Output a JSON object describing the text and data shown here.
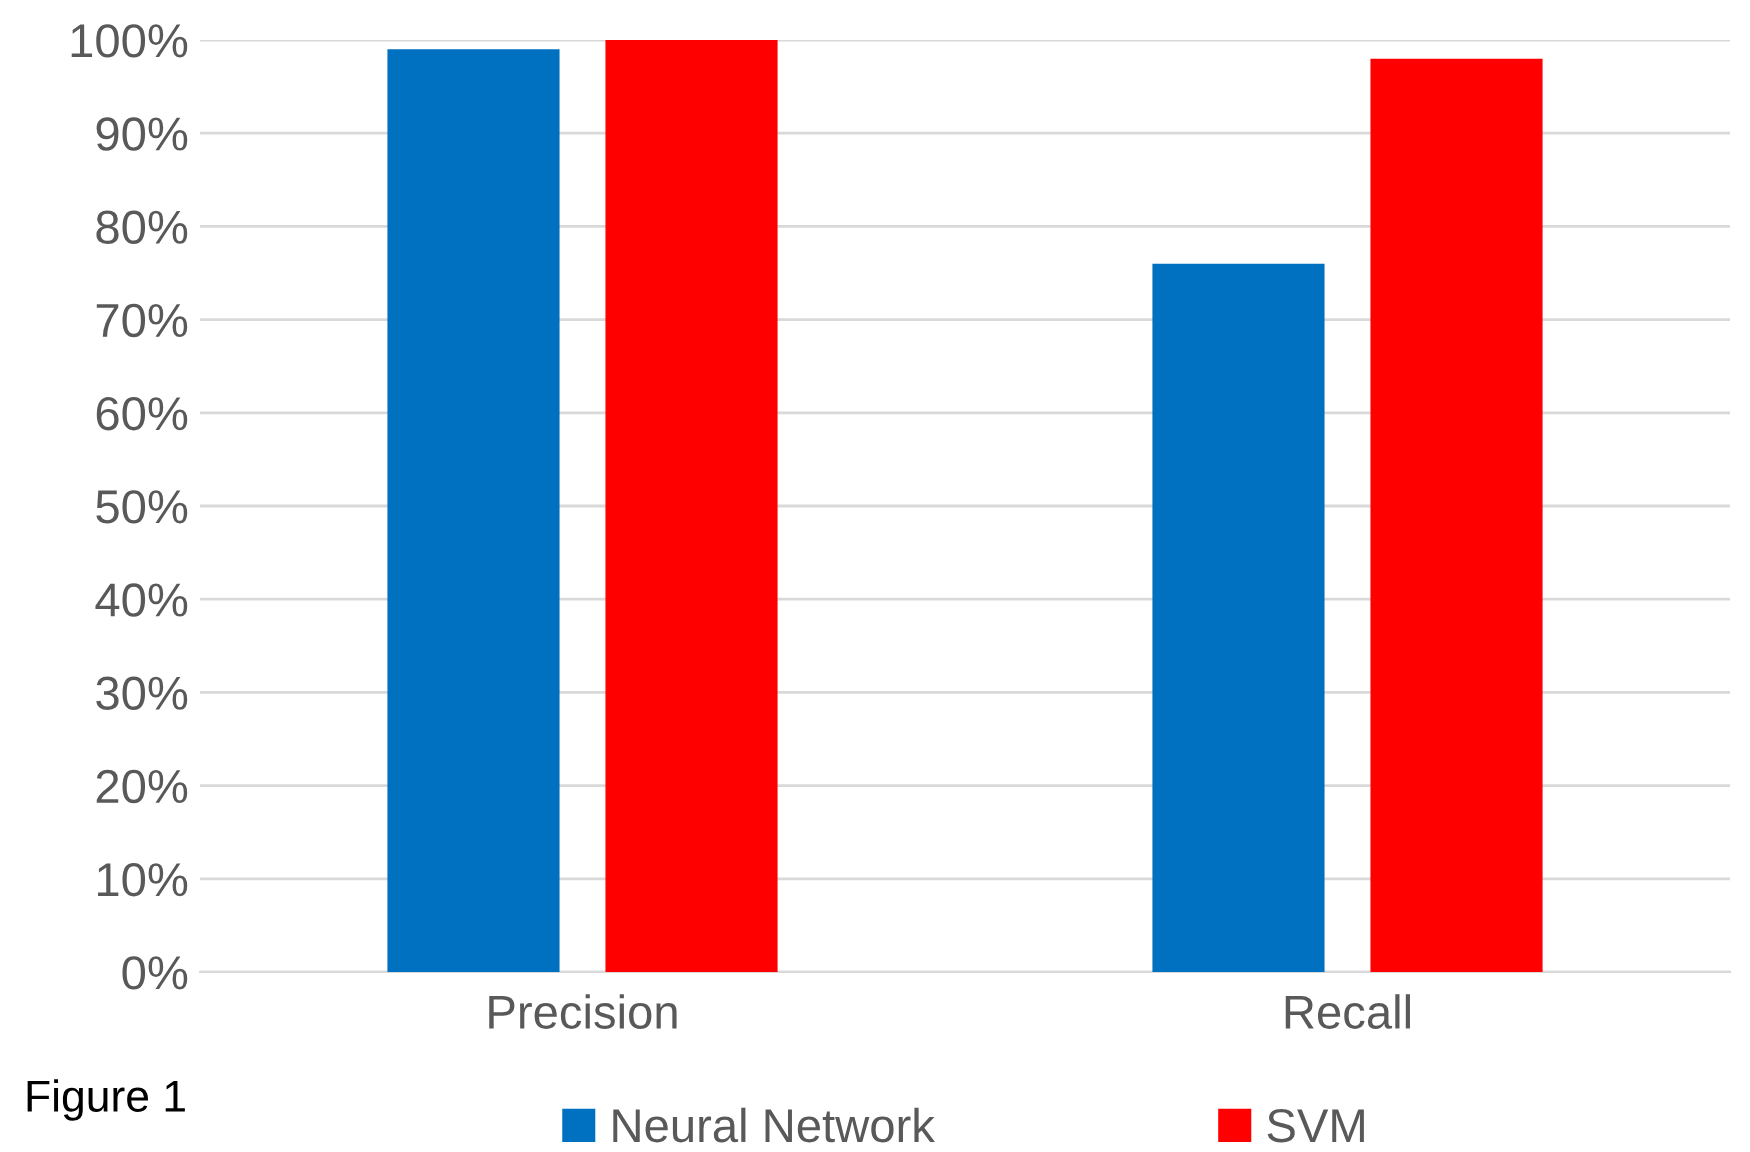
{
  "chart_data": {
    "type": "bar",
    "categories": [
      "Precision",
      "Recall"
    ],
    "series": [
      {
        "name": "Neural Network",
        "color": "#0070c0",
        "values": [
          99,
          76
        ]
      },
      {
        "name": "SVM",
        "color": "#ff0000",
        "values": [
          100,
          98
        ]
      }
    ],
    "ylim": [
      0,
      100
    ],
    "yticks": [
      {
        "value": 0,
        "label": "0%"
      },
      {
        "value": 10,
        "label": "10%"
      },
      {
        "value": 20,
        "label": "20%"
      },
      {
        "value": 30,
        "label": "30%"
      },
      {
        "value": 40,
        "label": "40%"
      },
      {
        "value": 50,
        "label": "50%"
      },
      {
        "value": 60,
        "label": "60%"
      },
      {
        "value": 70,
        "label": "70%"
      },
      {
        "value": 80,
        "label": "80%"
      },
      {
        "value": 90,
        "label": "90%"
      },
      {
        "value": 100,
        "label": "100%"
      }
    ],
    "grid": "y",
    "legend": "bottom",
    "annotations": [
      "Figure 1"
    ]
  }
}
